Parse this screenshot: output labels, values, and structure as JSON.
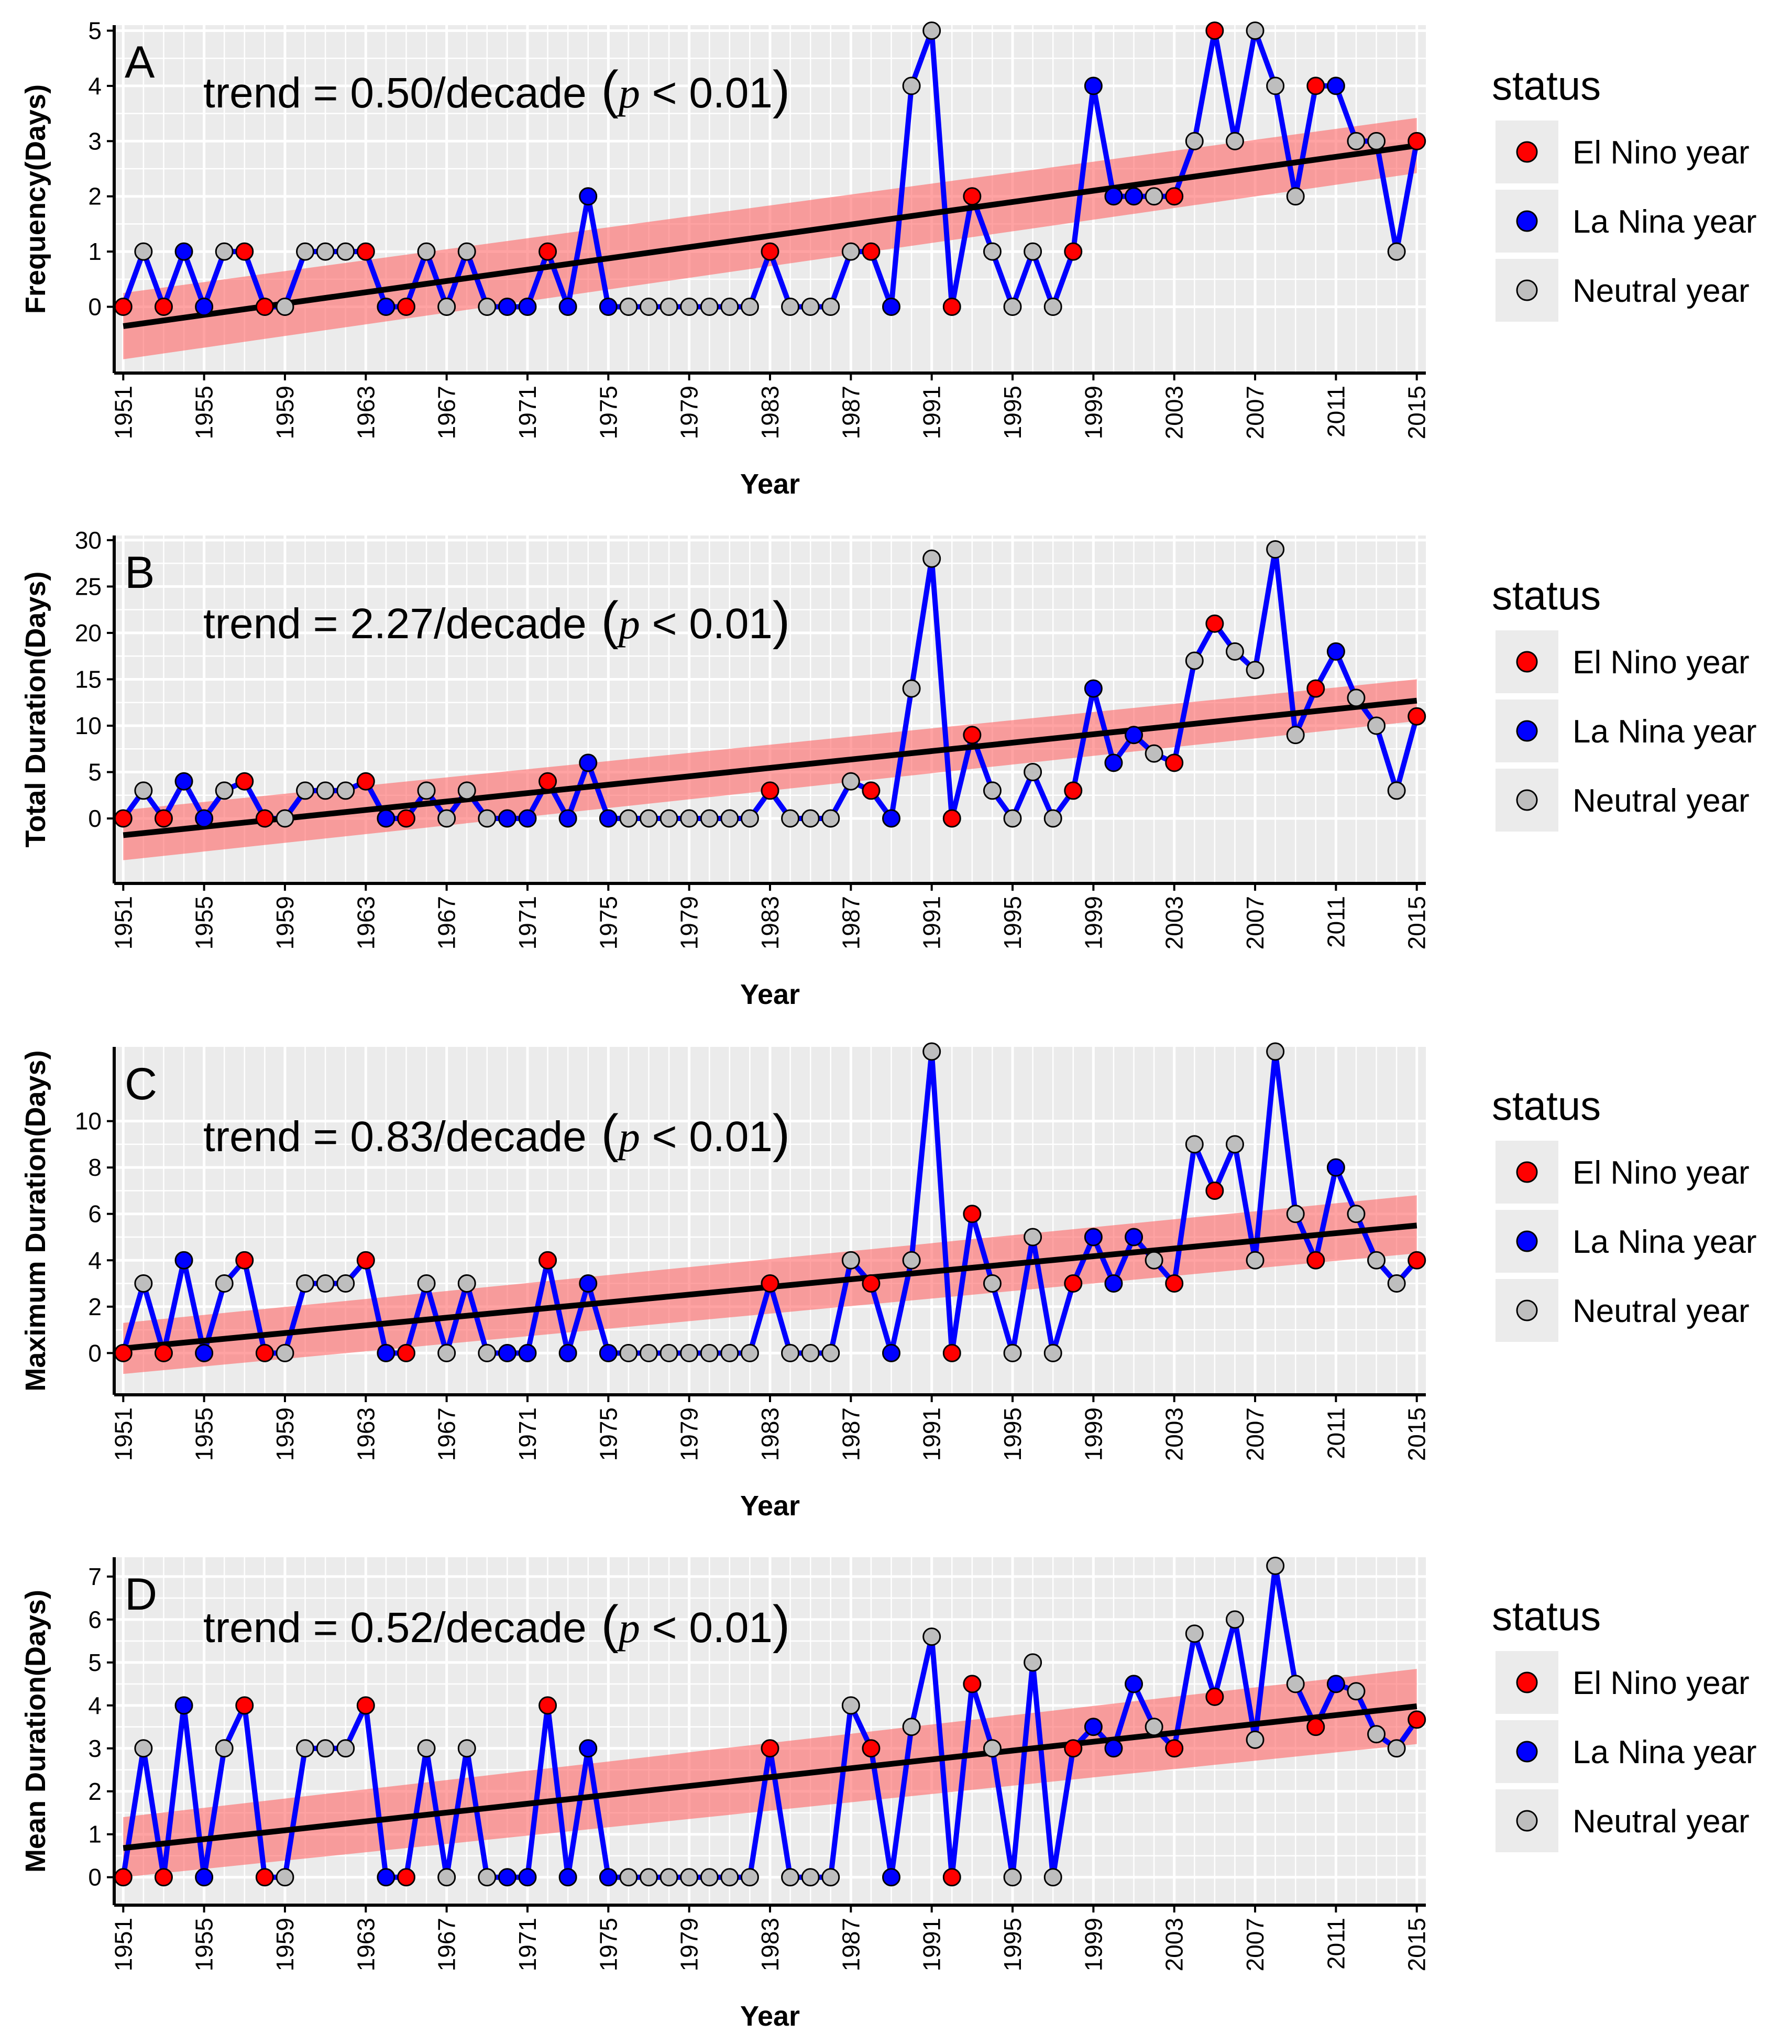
{
  "legend": {
    "title": "status",
    "items": [
      {
        "label": "El Nino year",
        "color": "#ff0000"
      },
      {
        "label": "La Nina year",
        "color": "#0000ff"
      },
      {
        "label": "Neutral year",
        "color": "#bebebe"
      }
    ]
  },
  "colors": {
    "line": "#0000ff",
    "trend": "#000000",
    "ribbon": "#ff6b6b",
    "panel_bg": "#ebebeb",
    "grid": "#ffffff"
  },
  "chart_data": [
    {
      "type": "line",
      "panel": "A",
      "xlabel": "Year",
      "ylabel": "Frequency(Days)",
      "trend_text": "trend = 0.50/decade",
      "trend_p": "p",
      "trend_lt": "<",
      "trend_p_value": "0.01",
      "xlim": [
        1951,
        2015
      ],
      "ylim": [
        -1.2,
        5.1
      ],
      "y_ticks": [
        0,
        1,
        2,
        3,
        4,
        5
      ],
      "x_ticks": [
        1951,
        1955,
        1959,
        1963,
        1967,
        1971,
        1975,
        1979,
        1983,
        1987,
        1991,
        1995,
        1999,
        2003,
        2007,
        2011,
        2015
      ],
      "x": [
        1951,
        1952,
        1953,
        1954,
        1955,
        1956,
        1957,
        1958,
        1959,
        1960,
        1961,
        1962,
        1963,
        1964,
        1965,
        1966,
        1967,
        1968,
        1969,
        1970,
        1971,
        1972,
        1973,
        1974,
        1975,
        1976,
        1977,
        1978,
        1979,
        1980,
        1981,
        1982,
        1983,
        1984,
        1985,
        1986,
        1987,
        1988,
        1989,
        1990,
        1991,
        1992,
        1993,
        1994,
        1995,
        1996,
        1997,
        1998,
        1999,
        2000,
        2001,
        2002,
        2003,
        2004,
        2005,
        2006,
        2007,
        2008,
        2009,
        2010,
        2011,
        2012,
        2013,
        2014,
        2015
      ],
      "values": [
        0,
        1,
        0,
        1,
        0,
        1,
        1,
        0,
        0,
        1,
        1,
        1,
        1,
        0,
        0,
        1,
        0,
        1,
        0,
        0,
        0,
        1,
        0,
        2,
        0,
        0,
        0,
        0,
        0,
        0,
        0,
        0,
        1,
        0,
        0,
        0,
        1,
        1,
        0,
        4,
        5,
        0,
        2,
        1,
        0,
        1,
        0,
        1,
        4,
        2,
        2,
        2,
        2,
        3,
        5,
        3,
        5,
        4,
        2,
        4,
        4,
        3,
        3,
        1,
        3
      ],
      "status": [
        "E",
        "N",
        "E",
        "L",
        "L",
        "N",
        "E",
        "E",
        "N",
        "N",
        "N",
        "N",
        "E",
        "L",
        "E",
        "N",
        "N",
        "N",
        "N",
        "L",
        "L",
        "E",
        "L",
        "L",
        "L",
        "N",
        "N",
        "N",
        "N",
        "N",
        "N",
        "N",
        "E",
        "N",
        "N",
        "N",
        "N",
        "E",
        "L",
        "N",
        "N",
        "E",
        "E",
        "N",
        "N",
        "N",
        "N",
        "E",
        "L",
        "L",
        "L",
        "N",
        "E",
        "N",
        "E",
        "N",
        "N",
        "N",
        "N",
        "E",
        "L",
        "N",
        "N",
        "N",
        "E"
      ],
      "trend_line": {
        "start": -0.35,
        "end": 2.92
      },
      "ribbon": {
        "start_low": -0.95,
        "start_high": 0.25,
        "end_low": 2.42,
        "end_high": 3.42
      }
    },
    {
      "type": "line",
      "panel": "B",
      "xlabel": "Year",
      "ylabel": "Total Duration(Days)",
      "trend_text": "trend = 2.27/decade",
      "trend_p": "p",
      "trend_lt": "<",
      "trend_p_value": "0.01",
      "xlim": [
        1951,
        2015
      ],
      "ylim": [
        -7,
        30.5
      ],
      "y_ticks": [
        0,
        5,
        10,
        15,
        20,
        25,
        30
      ],
      "x_ticks": [
        1951,
        1955,
        1959,
        1963,
        1967,
        1971,
        1975,
        1979,
        1983,
        1987,
        1991,
        1995,
        1999,
        2003,
        2007,
        2011,
        2015
      ],
      "x": [
        1951,
        1952,
        1953,
        1954,
        1955,
        1956,
        1957,
        1958,
        1959,
        1960,
        1961,
        1962,
        1963,
        1964,
        1965,
        1966,
        1967,
        1968,
        1969,
        1970,
        1971,
        1972,
        1973,
        1974,
        1975,
        1976,
        1977,
        1978,
        1979,
        1980,
        1981,
        1982,
        1983,
        1984,
        1985,
        1986,
        1987,
        1988,
        1989,
        1990,
        1991,
        1992,
        1993,
        1994,
        1995,
        1996,
        1997,
        1998,
        1999,
        2000,
        2001,
        2002,
        2003,
        2004,
        2005,
        2006,
        2007,
        2008,
        2009,
        2010,
        2011,
        2012,
        2013,
        2014,
        2015
      ],
      "values": [
        0,
        3,
        0,
        4,
        0,
        3,
        4,
        0,
        0,
        3,
        3,
        3,
        4,
        0,
        0,
        3,
        0,
        3,
        0,
        0,
        0,
        4,
        0,
        6,
        0,
        0,
        0,
        0,
        0,
        0,
        0,
        0,
        3,
        0,
        0,
        0,
        4,
        3,
        0,
        14,
        28,
        0,
        9,
        3,
        0,
        5,
        0,
        3,
        14,
        6,
        9,
        7,
        6,
        17,
        21,
        18,
        16,
        29,
        9,
        14,
        18,
        13,
        10,
        3,
        11
      ],
      "status": [
        "E",
        "N",
        "E",
        "L",
        "L",
        "N",
        "E",
        "E",
        "N",
        "N",
        "N",
        "N",
        "E",
        "L",
        "E",
        "N",
        "N",
        "N",
        "N",
        "L",
        "L",
        "E",
        "L",
        "L",
        "L",
        "N",
        "N",
        "N",
        "N",
        "N",
        "N",
        "N",
        "E",
        "N",
        "N",
        "N",
        "N",
        "E",
        "L",
        "N",
        "N",
        "E",
        "E",
        "N",
        "N",
        "N",
        "N",
        "E",
        "L",
        "L",
        "L",
        "N",
        "E",
        "N",
        "E",
        "N",
        "N",
        "N",
        "N",
        "E",
        "L",
        "N",
        "N",
        "N",
        "E"
      ],
      "trend_line": {
        "start": -1.8,
        "end": 12.7
      },
      "ribbon": {
        "start_low": -4.5,
        "start_high": 0.9,
        "end_low": 10.5,
        "end_high": 15.0
      }
    },
    {
      "type": "line",
      "panel": "C",
      "xlabel": "Year",
      "ylabel": "Maximum Duration(Days)",
      "trend_text": "trend = 0.83/decade",
      "trend_p": "p",
      "trend_lt": "<",
      "trend_p_value": "0.01",
      "xlim": [
        1951,
        2015
      ],
      "ylim": [
        -1.8,
        13.2
      ],
      "y_ticks": [
        0,
        2,
        4,
        6,
        8,
        10
      ],
      "x_ticks": [
        1951,
        1955,
        1959,
        1963,
        1967,
        1971,
        1975,
        1979,
        1983,
        1987,
        1991,
        1995,
        1999,
        2003,
        2007,
        2011,
        2015
      ],
      "x": [
        1951,
        1952,
        1953,
        1954,
        1955,
        1956,
        1957,
        1958,
        1959,
        1960,
        1961,
        1962,
        1963,
        1964,
        1965,
        1966,
        1967,
        1968,
        1969,
        1970,
        1971,
        1972,
        1973,
        1974,
        1975,
        1976,
        1977,
        1978,
        1979,
        1980,
        1981,
        1982,
        1983,
        1984,
        1985,
        1986,
        1987,
        1988,
        1989,
        1990,
        1991,
        1992,
        1993,
        1994,
        1995,
        1996,
        1997,
        1998,
        1999,
        2000,
        2001,
        2002,
        2003,
        2004,
        2005,
        2006,
        2007,
        2008,
        2009,
        2010,
        2011,
        2012,
        2013,
        2014,
        2015
      ],
      "values": [
        0,
        3,
        0,
        4,
        0,
        3,
        4,
        0,
        0,
        3,
        3,
        3,
        4,
        0,
        0,
        3,
        0,
        3,
        0,
        0,
        0,
        4,
        0,
        3,
        0,
        0,
        0,
        0,
        0,
        0,
        0,
        0,
        3,
        0,
        0,
        0,
        4,
        3,
        0,
        4,
        13,
        0,
        6,
        3,
        0,
        5,
        0,
        3,
        5,
        3,
        5,
        4,
        3,
        9,
        7,
        9,
        4,
        13,
        6,
        4,
        8,
        6,
        4,
        3,
        4
      ],
      "status": [
        "E",
        "N",
        "E",
        "L",
        "L",
        "N",
        "E",
        "E",
        "N",
        "N",
        "N",
        "N",
        "E",
        "L",
        "E",
        "N",
        "N",
        "N",
        "N",
        "L",
        "L",
        "E",
        "L",
        "L",
        "L",
        "N",
        "N",
        "N",
        "N",
        "N",
        "N",
        "N",
        "E",
        "N",
        "N",
        "N",
        "N",
        "E",
        "L",
        "N",
        "N",
        "E",
        "E",
        "N",
        "N",
        "N",
        "N",
        "E",
        "L",
        "L",
        "L",
        "N",
        "E",
        "N",
        "E",
        "N",
        "N",
        "N",
        "N",
        "E",
        "L",
        "N",
        "N",
        "N",
        "E"
      ],
      "trend_line": {
        "start": 0.2,
        "end": 5.5
      },
      "ribbon": {
        "start_low": -0.9,
        "start_high": 1.3,
        "end_low": 4.3,
        "end_high": 6.8
      }
    },
    {
      "type": "line",
      "panel": "D",
      "xlabel": "Year",
      "ylabel": "Mean Duration(Days)",
      "trend_text": "trend = 0.52/decade",
      "trend_p": "p",
      "trend_lt": "<",
      "trend_p_value": "0.01",
      "xlim": [
        1951,
        2015
      ],
      "ylim": [
        -0.65,
        7.45
      ],
      "y_ticks": [
        0,
        1,
        2,
        3,
        4,
        5,
        6,
        7
      ],
      "x_ticks": [
        1951,
        1955,
        1959,
        1963,
        1967,
        1971,
        1975,
        1979,
        1983,
        1987,
        1991,
        1995,
        1999,
        2003,
        2007,
        2011,
        2015
      ],
      "x": [
        1951,
        1952,
        1953,
        1954,
        1955,
        1956,
        1957,
        1958,
        1959,
        1960,
        1961,
        1962,
        1963,
        1964,
        1965,
        1966,
        1967,
        1968,
        1969,
        1970,
        1971,
        1972,
        1973,
        1974,
        1975,
        1976,
        1977,
        1978,
        1979,
        1980,
        1981,
        1982,
        1983,
        1984,
        1985,
        1986,
        1987,
        1988,
        1989,
        1990,
        1991,
        1992,
        1993,
        1994,
        1995,
        1996,
        1997,
        1998,
        1999,
        2000,
        2001,
        2002,
        2003,
        2004,
        2005,
        2006,
        2007,
        2008,
        2009,
        2010,
        2011,
        2012,
        2013,
        2014,
        2015
      ],
      "values": [
        0,
        3,
        0,
        4,
        0,
        3,
        4,
        0,
        0,
        3,
        3,
        3,
        4,
        0,
        0,
        3,
        0,
        3,
        0,
        0,
        0,
        4,
        0,
        3,
        0,
        0,
        0,
        0,
        0,
        0,
        0,
        0,
        3,
        0,
        0,
        0,
        4,
        3,
        0,
        3.5,
        5.6,
        0,
        4.5,
        3,
        0,
        5,
        0,
        3,
        3.5,
        3,
        4.5,
        3.5,
        3,
        5.67,
        4.2,
        6,
        3.2,
        7.25,
        4.5,
        3.5,
        4.5,
        4.33,
        3.33,
        3,
        3.67
      ],
      "status": [
        "E",
        "N",
        "E",
        "L",
        "L",
        "N",
        "E",
        "E",
        "N",
        "N",
        "N",
        "N",
        "E",
        "L",
        "E",
        "N",
        "N",
        "N",
        "N",
        "L",
        "L",
        "E",
        "L",
        "L",
        "L",
        "N",
        "N",
        "N",
        "N",
        "N",
        "N",
        "N",
        "E",
        "N",
        "N",
        "N",
        "N",
        "E",
        "L",
        "N",
        "N",
        "E",
        "E",
        "N",
        "N",
        "N",
        "N",
        "E",
        "L",
        "L",
        "L",
        "N",
        "E",
        "N",
        "E",
        "N",
        "N",
        "N",
        "N",
        "E",
        "L",
        "N",
        "N",
        "N",
        "E"
      ],
      "trend_line": {
        "start": 0.68,
        "end": 3.98
      },
      "ribbon": {
        "start_low": 0.0,
        "start_high": 1.4,
        "end_low": 3.1,
        "end_high": 4.85
      }
    }
  ]
}
